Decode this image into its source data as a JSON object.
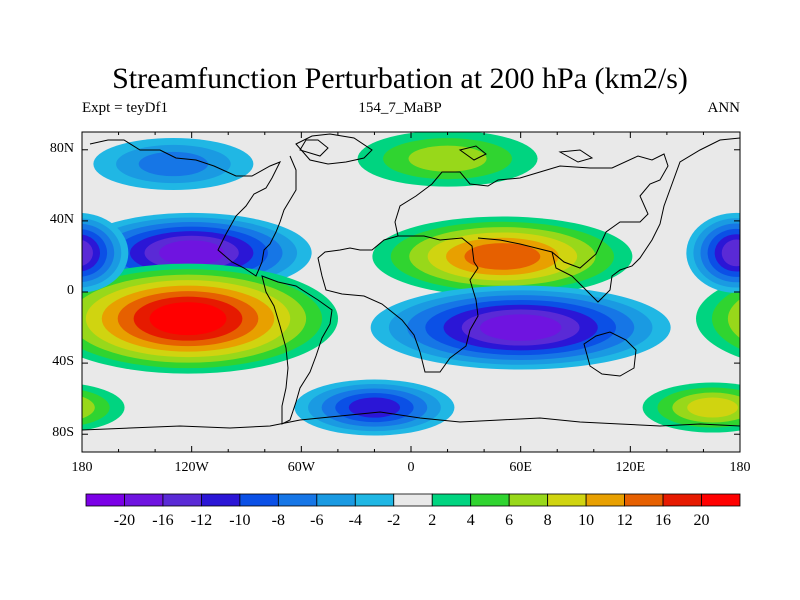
{
  "header": {
    "title": "Streamfunction Perturbation at 200 hPa (km2/s)",
    "left": "Expt = teyDf1",
    "center": "154_7_MaBP",
    "right": "ANN"
  },
  "axes": {
    "x_ticks": [
      "180",
      "120W",
      "60W",
      "0",
      "60E",
      "120E",
      "180"
    ],
    "y_ticks": [
      "80N",
      "40N",
      "0",
      "40S",
      "80S"
    ]
  },
  "colorbar": {
    "labels": [
      "-20",
      "-16",
      "-12",
      "-10",
      "-8",
      "-6",
      "-4",
      "-2",
      "2",
      "4",
      "6",
      "8",
      "10",
      "12",
      "16",
      "20"
    ],
    "colors": [
      "#7b00e6",
      "#6f14e0",
      "#5a2ad6",
      "#2b16d6",
      "#0b50e6",
      "#1676e6",
      "#1a9ae2",
      "#20b7e4",
      "#e9e9e9",
      "#00d480",
      "#30d430",
      "#98d81a",
      "#d0d410",
      "#e8a000",
      "#e66000",
      "#e61a00",
      "#ff0000"
    ]
  },
  "chart_data": {
    "type": "heatmap",
    "title": "Streamfunction Perturbation at 200 hPa (km2/s)",
    "xlim": [
      -180,
      180
    ],
    "ylim": [
      -90,
      90
    ],
    "levels": [
      -20,
      -16,
      -12,
      -10,
      -8,
      -6,
      -4,
      -2,
      2,
      4,
      6,
      8,
      10,
      12,
      16,
      20
    ],
    "features": [
      {
        "lon": -120,
        "lat": 22,
        "value": -18
      },
      {
        "lon": -122,
        "lat": -15,
        "value": 20
      },
      {
        "lon": 50,
        "lat": 20,
        "value": 14
      },
      {
        "lon": 60,
        "lat": -20,
        "value": -16
      },
      {
        "lon": -20,
        "lat": -65,
        "value": -10
      },
      {
        "lon": 20,
        "lat": 75,
        "value": 6
      },
      {
        "lon": 165,
        "lat": -65,
        "value": 8
      },
      {
        "lon": 178,
        "lat": 22,
        "value": -14
      },
      {
        "lon": -130,
        "lat": 72,
        "value": -6
      }
    ]
  }
}
